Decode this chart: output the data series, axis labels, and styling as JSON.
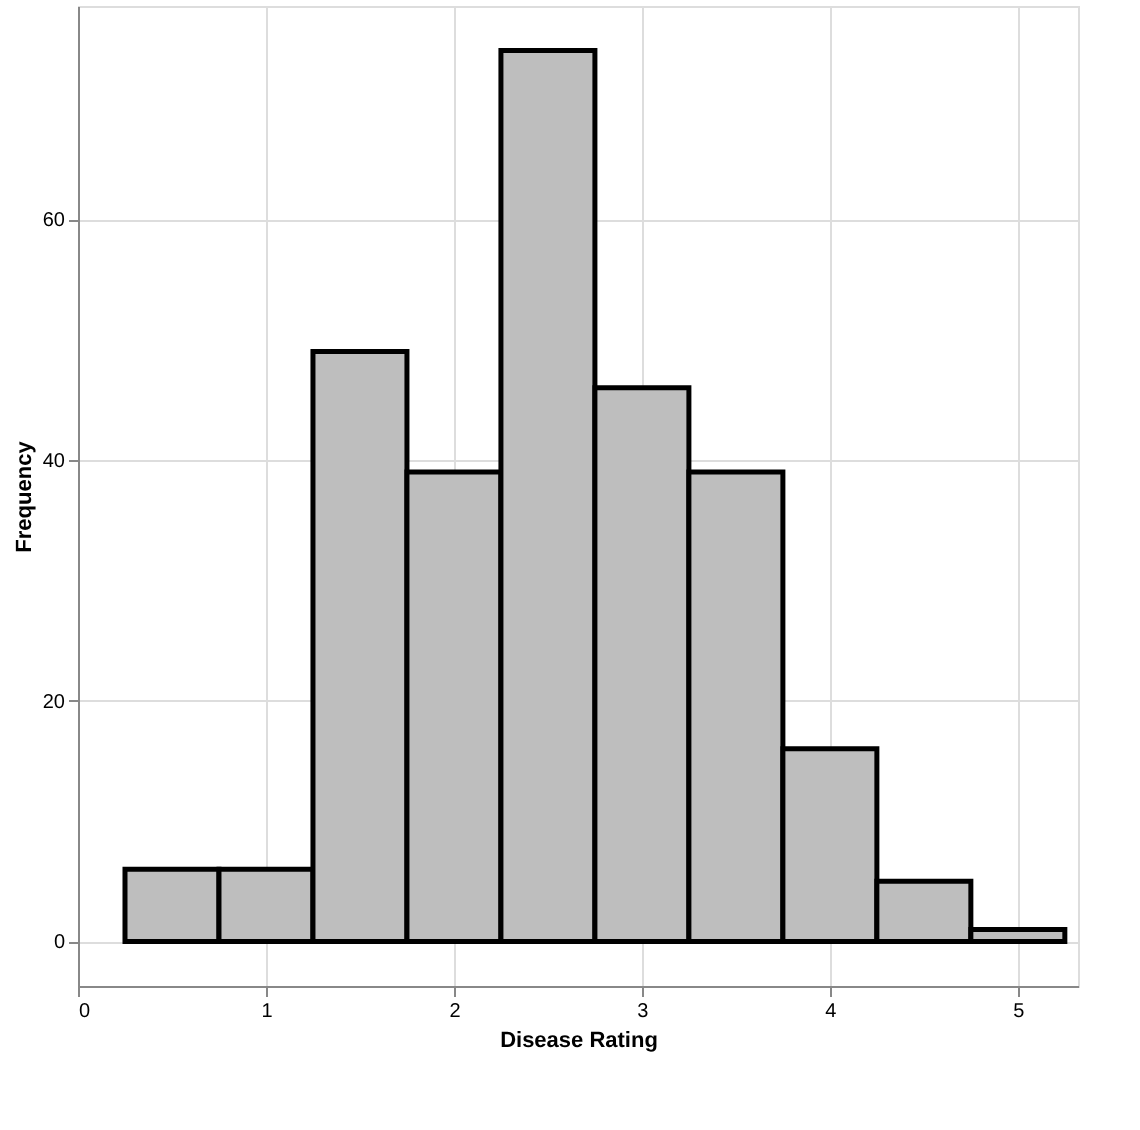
{
  "chart_data": {
    "type": "histogram",
    "xlabel": "Disease Rating",
    "ylabel": "Frequency",
    "bins": [
      0.25,
      0.75,
      1.25,
      1.75,
      2.25,
      2.75,
      3.25,
      3.75,
      4.25,
      4.75,
      5.25
    ],
    "values": [
      6,
      6,
      49,
      39,
      74,
      46,
      39,
      16,
      5,
      1
    ],
    "color": "#bebebe",
    "xlim": [
      0,
      5.32
    ],
    "ylim": [
      -3.7,
      77.7
    ],
    "xticks": [
      0,
      1,
      2,
      3,
      4,
      5
    ],
    "yticks": [
      0,
      20,
      40,
      60
    ],
    "grid": true
  }
}
